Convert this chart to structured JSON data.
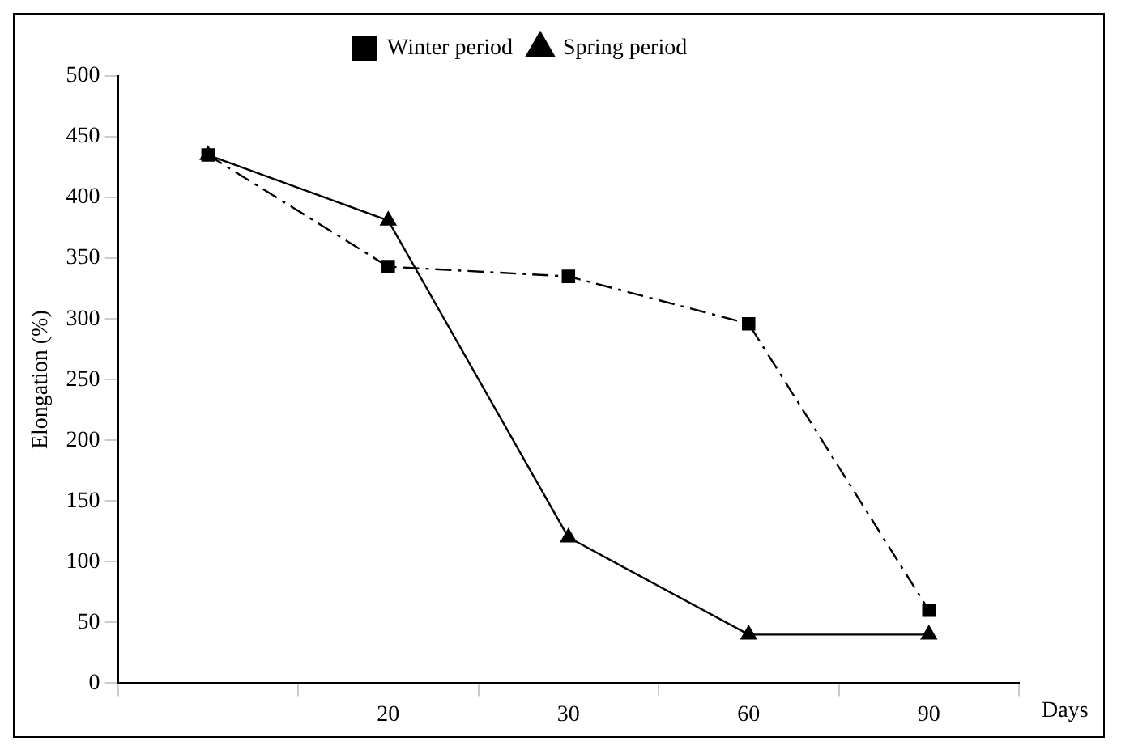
{
  "chart_data": {
    "type": "line",
    "ylabel": "Elongation (%)",
    "xlabel": "Days",
    "categories": [
      null,
      "20",
      "30",
      "60",
      "90"
    ],
    "ylim": [
      0,
      500
    ],
    "yticks": [
      0,
      50,
      100,
      150,
      200,
      250,
      300,
      350,
      400,
      450,
      500
    ],
    "series": [
      {
        "name": "Winter period",
        "color": "#000000",
        "marker": "square",
        "line_style": "dashed",
        "values": [
          435,
          343,
          335,
          296,
          60
        ]
      },
      {
        "name": "Spring period",
        "color": "#000000",
        "marker": "triangle",
        "line_style": "solid",
        "values": [
          435,
          381,
          120,
          40,
          40
        ]
      }
    ],
    "legend": "top",
    "grid": false
  }
}
